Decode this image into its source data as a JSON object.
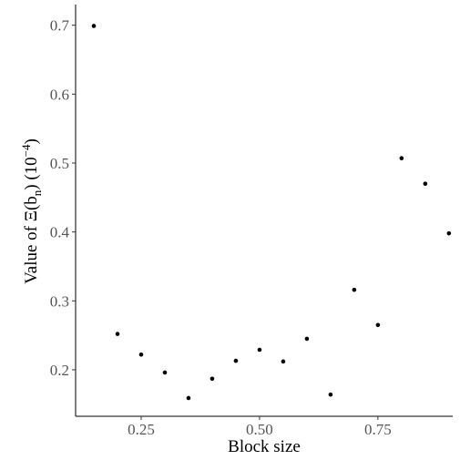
{
  "chart_data": {
    "type": "scatter",
    "xlabel": "Block size",
    "ylabel_parts": [
      "Value of Ξ(b",
      "n",
      ") (10",
      "−4",
      ")"
    ],
    "x": [
      0.15,
      0.2,
      0.25,
      0.3,
      0.35,
      0.4,
      0.45,
      0.5,
      0.55,
      0.6,
      0.65,
      0.7,
      0.75,
      0.8,
      0.85,
      0.9
    ],
    "values": [
      0.699,
      0.252,
      0.222,
      0.196,
      0.159,
      0.187,
      0.213,
      0.229,
      0.212,
      0.245,
      0.164,
      0.316,
      0.265,
      0.507,
      0.47,
      0.398
    ],
    "color": "#000000",
    "xlim": [
      0.1115,
      0.908
    ],
    "ylim": [
      0.1325,
      0.73
    ],
    "xticks": [
      {
        "value": 0.25,
        "label": "0.25"
      },
      {
        "value": 0.5,
        "label": "0.50"
      },
      {
        "value": 0.75,
        "label": "0.75"
      }
    ],
    "yticks": [
      0.2,
      0.3,
      0.4,
      0.5,
      0.6,
      0.7
    ],
    "grid": false
  }
}
